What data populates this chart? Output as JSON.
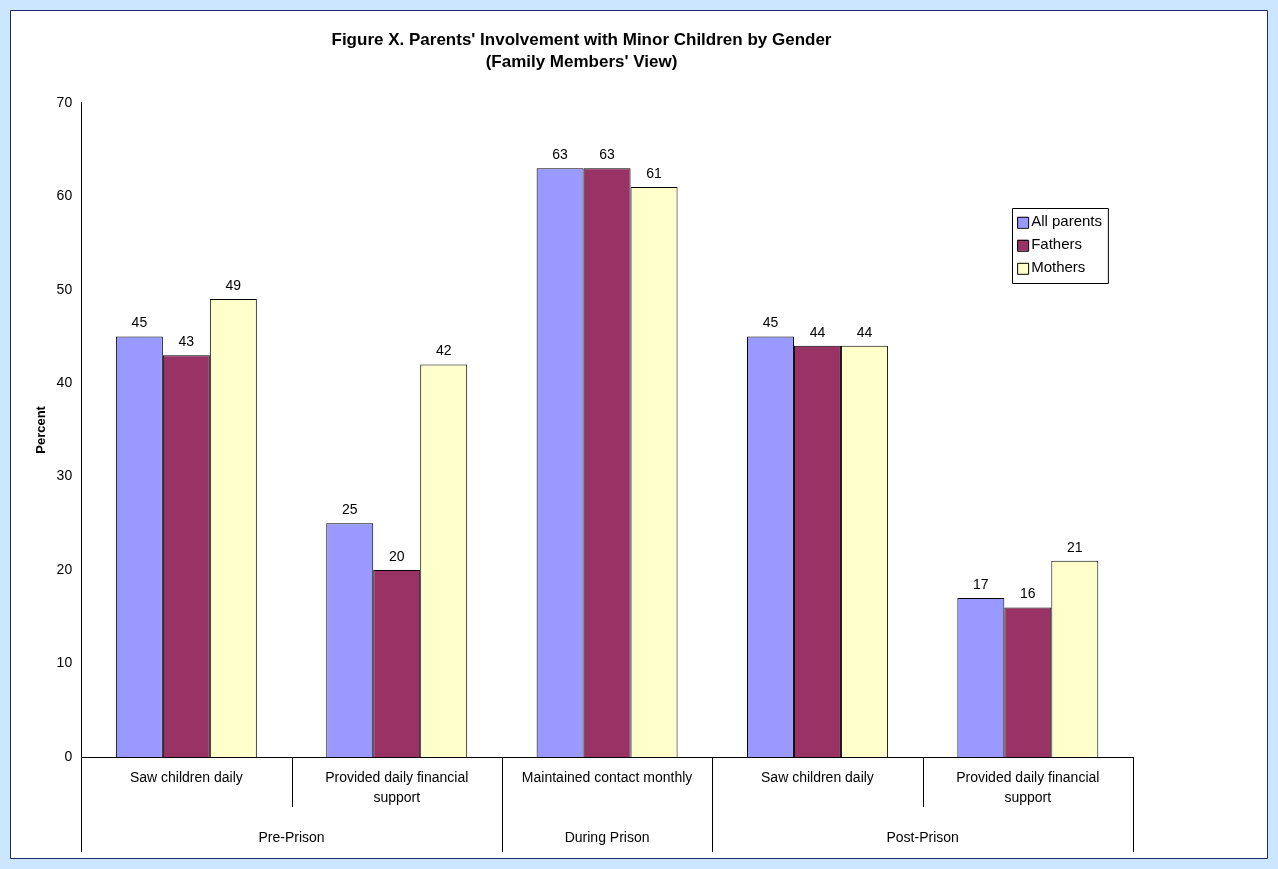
{
  "chart_data": {
    "type": "bar",
    "title": "Figure X. Parents' Involvement with Minor Children by Gender",
    "subtitle": "(Family Members' View)",
    "ylabel": "Percent",
    "categories": [
      "Saw children daily",
      "Provided daily financial support",
      "Maintained contact monthly",
      "Saw children daily",
      "Provided daily financial support"
    ],
    "series": [
      {
        "name": "All parents",
        "color": "#9999ff",
        "values": [
          45,
          25,
          63,
          45,
          17
        ]
      },
      {
        "name": "Fathers",
        "color": "#993366",
        "values": [
          43,
          20,
          63,
          44,
          16
        ]
      },
      {
        "name": "Mothers",
        "color": "#ffffcc",
        "values": [
          49,
          42,
          61,
          44,
          21
        ]
      }
    ],
    "annotations": [
      "Pre-Prison",
      "During Prison",
      "Post-Prison"
    ],
    "ylim": [
      0,
      70
    ],
    "yticks": [
      0,
      10,
      20,
      30,
      40,
      50,
      60,
      70
    ],
    "grid": false,
    "legend": "top right",
    "data_labels": true
  }
}
